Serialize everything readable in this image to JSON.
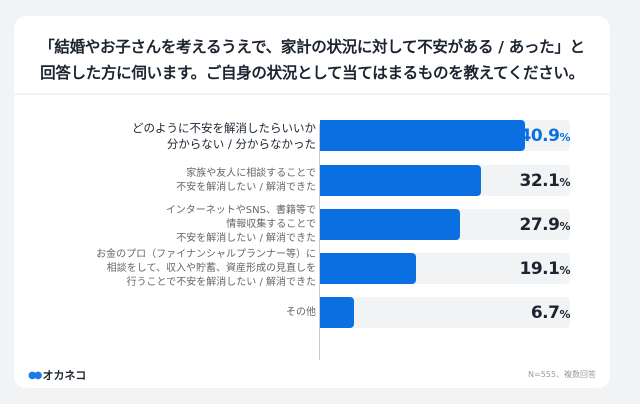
{
  "title_lines": [
    "「結婚やお子さんを考えるうえで、家計の状況に対して不安がある / あった」と",
    "回答した方に伺います。ご自身の状況として当てはまるものを教えてください。"
  ],
  "chart_data": {
    "type": "bar",
    "orientation": "horizontal",
    "categories": [
      "どのように不安を解消したらいいか\n分からない / 分からなかった",
      "家族や友人に相談することで\n不安を解消したい / 解消できた",
      "インターネットやSNS、書籍等で\n情報収集することで\n不安を解消したい / 解消できた",
      "お金のプロ（ファイナンシャルプランナー等）に\n相談をして、収入や貯蓄、資産形成の見直しを\n行うことで不安を解消したい / 解消できた",
      "その他"
    ],
    "values": [
      40.9,
      32.1,
      27.9,
      19.1,
      6.7
    ],
    "value_labels": [
      "40.9",
      "32.1",
      "27.9",
      "19.1",
      "6.7"
    ],
    "unit": "%",
    "xlim": [
      0,
      50
    ],
    "bar_color": "#0a6fe0",
    "track_color": "#f1f3f5",
    "highlight_index": 0
  },
  "footer": {
    "logo_text": "オカネコ",
    "note": "N=555、複数回答"
  }
}
